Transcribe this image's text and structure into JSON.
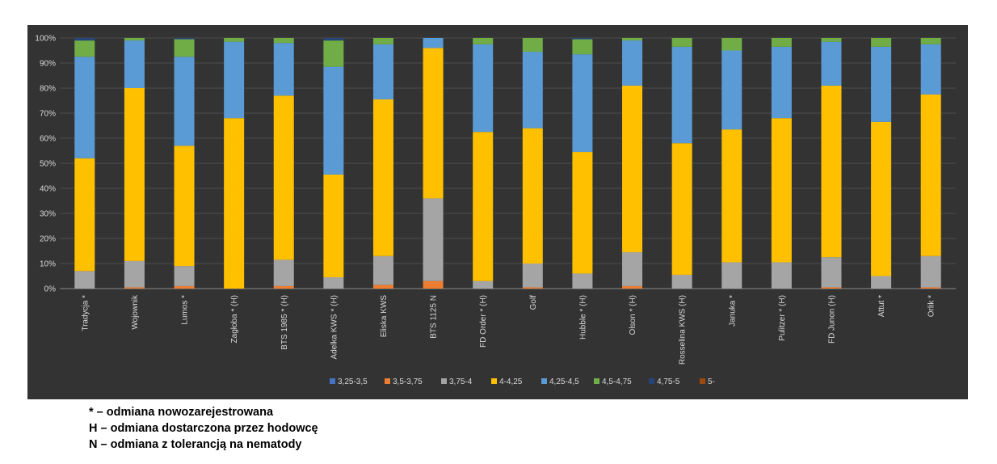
{
  "chart_data": {
    "type": "bar",
    "stacked": true,
    "title": "",
    "xlabel": "",
    "ylabel": "",
    "ylim": [
      0,
      100
    ],
    "y_ticks": [
      "0%",
      "10%",
      "20%",
      "30%",
      "40%",
      "50%",
      "60%",
      "70%",
      "80%",
      "90%",
      "100%"
    ],
    "grid": "horizontal",
    "legend_position": "bottom",
    "background": "#333333",
    "categories": [
      "Tradycja *",
      "Wojownik",
      "Lumos *",
      "Zagłoba * (H)",
      "BTS 1985 * (H)",
      "Adelka KWS * (H)",
      "Eliska KWS",
      "BTS 1125 N",
      "FD Order * (H)",
      "Golf",
      "Hubble * (H)",
      "Olson * (H)",
      "Rosselina KWS (H)",
      "Januka *",
      "Pulitzer * (H)",
      "FD Junon (H)",
      "Attut *",
      "Orlik *"
    ],
    "series": [
      {
        "name": "3,25-3,5",
        "color": "#4472C4",
        "values": [
          0,
          0,
          0,
          0,
          0,
          0,
          0,
          0,
          0,
          0,
          0,
          0,
          0,
          0,
          0,
          0,
          0,
          0
        ]
      },
      {
        "name": "3,5-3,75",
        "color": "#ED7D31",
        "values": [
          0,
          0.5,
          1,
          0,
          1,
          0,
          1.5,
          3,
          0,
          0.5,
          0,
          1,
          0,
          0,
          0,
          0.5,
          0,
          0.5
        ]
      },
      {
        "name": "3,75-4",
        "color": "#A5A5A5",
        "values": [
          7,
          10.5,
          8,
          0,
          10.5,
          4.5,
          11.5,
          33,
          3,
          9.5,
          6,
          13.5,
          5.5,
          10.5,
          10.5,
          12,
          5,
          12.5
        ]
      },
      {
        "name": "4-4,25",
        "color": "#FFC000",
        "values": [
          45,
          69,
          48,
          68,
          65.5,
          41,
          62.5,
          60,
          59.5,
          54,
          48.5,
          66.5,
          52.5,
          53,
          57.5,
          68.5,
          61.5,
          64.5
        ]
      },
      {
        "name": "4,25-4,5",
        "color": "#5B9BD5",
        "values": [
          40.5,
          19,
          35.5,
          30.5,
          21,
          43,
          22,
          4,
          35,
          30.5,
          39,
          18,
          38.5,
          31.5,
          28.5,
          17.5,
          30,
          20
        ]
      },
      {
        "name": "4,5-4,75",
        "color": "#70AD47",
        "values": [
          6.5,
          1,
          7,
          1.5,
          2,
          10.5,
          2.5,
          0,
          2.5,
          5.5,
          6,
          1,
          3.5,
          5,
          3.5,
          1.5,
          3.5,
          2.5
        ]
      },
      {
        "name": "4,75-5",
        "color": "#264478",
        "values": [
          1,
          0,
          0.5,
          0,
          0,
          1,
          0,
          0,
          0,
          0,
          0.5,
          0,
          0,
          0,
          0,
          0,
          0,
          0
        ]
      },
      {
        "name": "5-",
        "color": "#9E480E",
        "values": [
          0,
          0,
          0,
          0,
          0,
          0,
          0,
          0,
          0,
          0,
          0,
          0,
          0,
          0,
          0,
          0,
          0,
          0
        ]
      }
    ]
  },
  "notes": [
    "* – odmiana nowozarejestrowana",
    "H – odmiana dostarczona przez hodowcę",
    "N – odmiana z tolerancją na nematody"
  ]
}
